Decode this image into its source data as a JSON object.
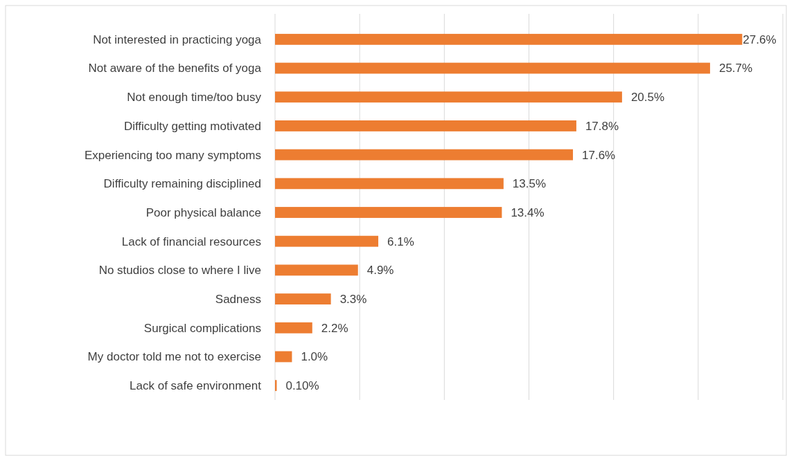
{
  "chart_data": {
    "type": "bar",
    "orientation": "horizontal",
    "categories": [
      "Not interested in practicing yoga",
      "Not aware of the benefits of yoga",
      "Not enough time/too busy",
      "Difficulty getting motivated",
      "Experiencing too many symptoms",
      "Difficulty remaining disciplined",
      "Poor physical balance",
      "Lack of financial resources",
      "No studios close to where I live",
      "Sadness",
      "Surgical complications",
      "My doctor told me not to exercise",
      "Lack of safe environment"
    ],
    "values": [
      27.6,
      25.7,
      20.5,
      17.8,
      17.6,
      13.5,
      13.4,
      6.1,
      4.9,
      3.3,
      2.2,
      1.0,
      0.1
    ],
    "value_labels": [
      "27.6%",
      "25.7%",
      "20.5%",
      "17.8%",
      "17.6%",
      "13.5%",
      "13.4%",
      "6.1%",
      "4.9%",
      "3.3%",
      "2.2%",
      "1.0%",
      "0.10%"
    ],
    "color": "#ed7d31",
    "xlim": [
      0,
      30
    ],
    "xticks": [
      {
        "value": 0,
        "label": null
      },
      {
        "value": 5,
        "label": null
      },
      {
        "value": 10,
        "label": null
      },
      {
        "value": 15,
        "label": null
      },
      {
        "value": 20,
        "label": null
      },
      {
        "value": 25,
        "label": null
      },
      {
        "value": 30,
        "label": null
      }
    ],
    "grid": "x",
    "tick_labels": "y"
  }
}
